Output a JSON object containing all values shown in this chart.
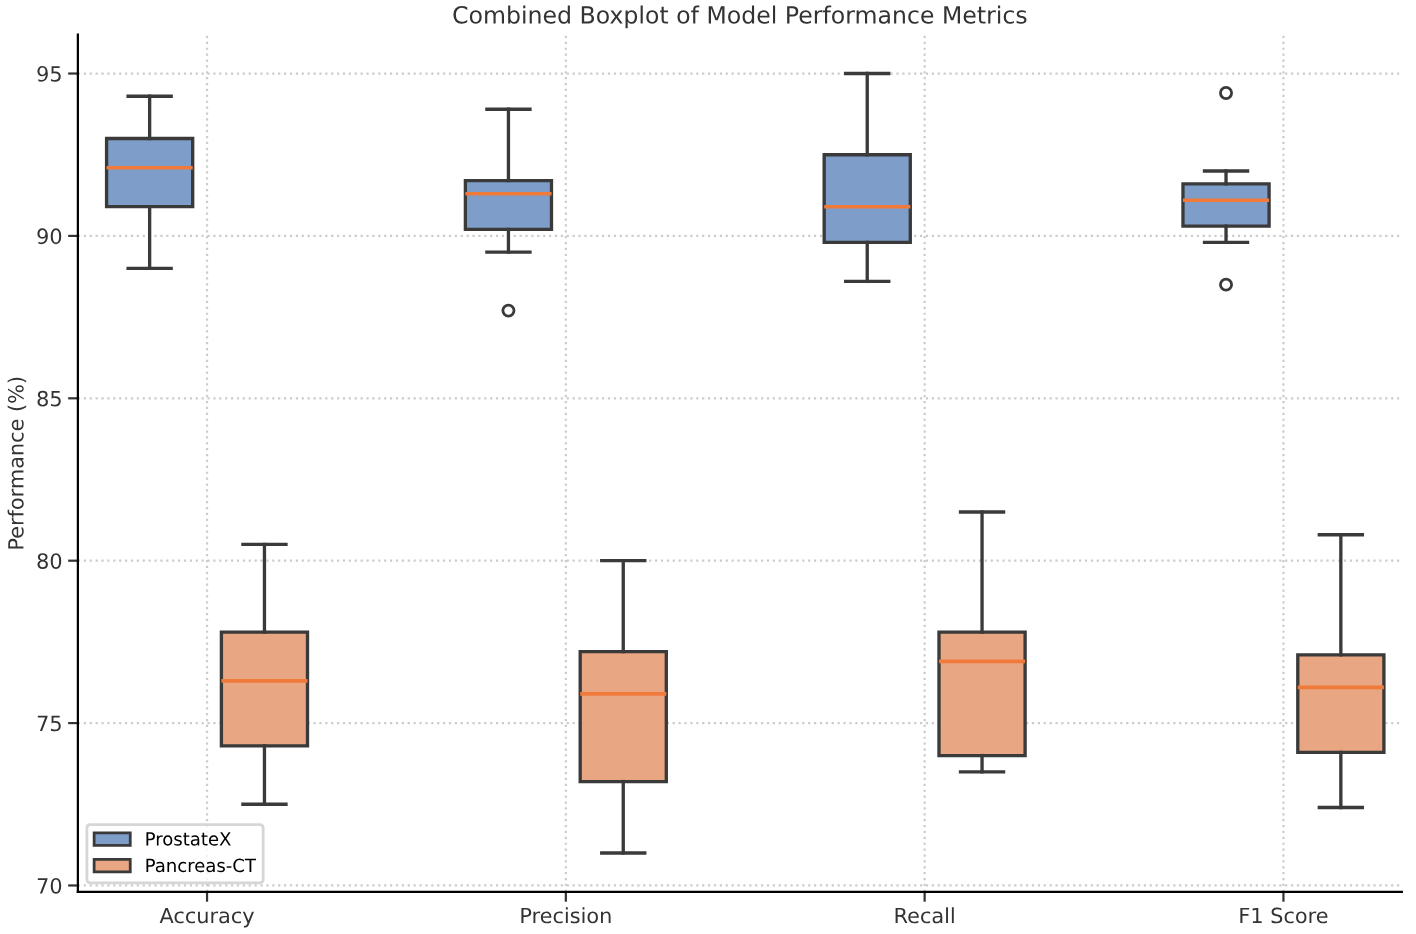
{
  "chart_data": {
    "type": "box",
    "title": "Combined Boxplot of Model Performance Metrics",
    "ylabel": "Performance (%)",
    "categories": [
      "Accuracy",
      "Precision",
      "Recall",
      "F1 Score"
    ],
    "series": [
      {
        "name": "ProstateX",
        "color": "#7f9dc9",
        "boxes": [
          {
            "low": 89.0,
            "q1": 90.9,
            "median": 92.1,
            "q3": 93.0,
            "high": 94.3
          },
          {
            "low": 89.5,
            "q1": 90.2,
            "median": 91.3,
            "q3": 91.7,
            "high": 93.9,
            "outliers": [
              87.7
            ]
          },
          {
            "low": 88.6,
            "q1": 89.8,
            "median": 90.9,
            "q3": 92.5,
            "high": 95.0
          },
          {
            "low": 89.8,
            "q1": 90.3,
            "median": 91.1,
            "q3": 91.6,
            "high": 92.0,
            "outliers": [
              94.4,
              88.5
            ]
          }
        ]
      },
      {
        "name": "Pancreas-CT",
        "color": "#e8a682",
        "boxes": [
          {
            "low": 72.5,
            "q1": 74.3,
            "median": 76.3,
            "q3": 77.8,
            "high": 80.5
          },
          {
            "low": 71.0,
            "q1": 73.2,
            "median": 75.9,
            "q3": 77.2,
            "high": 80.0
          },
          {
            "low": 73.5,
            "q1": 74.0,
            "median": 76.9,
            "q3": 77.8,
            "high": 81.5
          },
          {
            "low": 72.4,
            "q1": 74.1,
            "median": 76.1,
            "q3": 77.1,
            "high": 80.8
          }
        ]
      }
    ],
    "ylim": [
      69.8,
      96.2
    ],
    "yticks": [
      70,
      75,
      80,
      85,
      90,
      95
    ],
    "grid": true,
    "legend": "bottom left"
  }
}
